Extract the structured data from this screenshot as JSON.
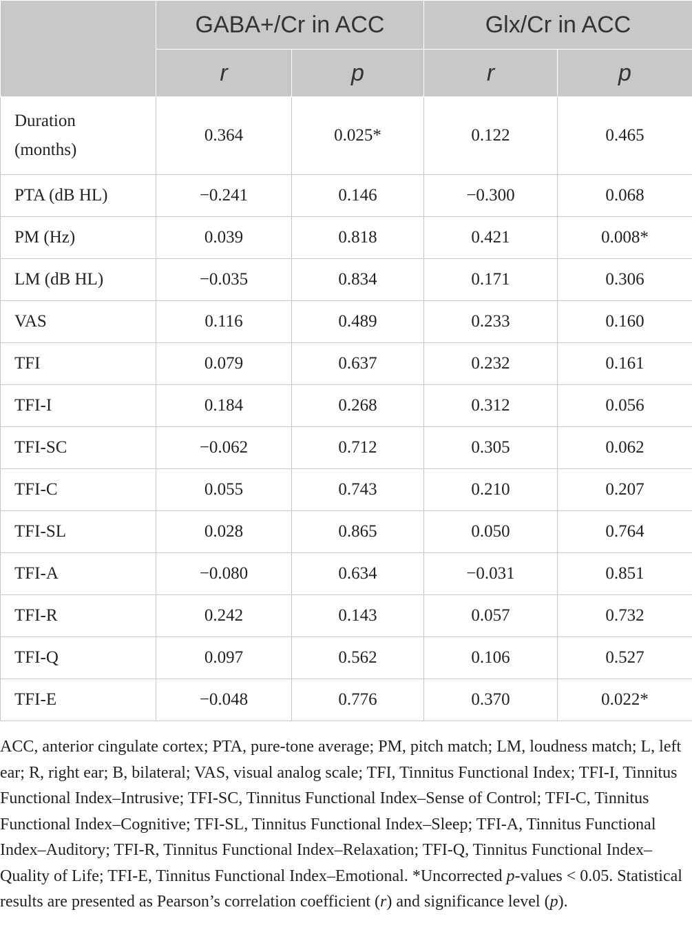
{
  "table": {
    "groups": [
      "GABA+/Cr in ACC",
      "Glx/Cr in ACC"
    ],
    "subheaders": [
      "r",
      "p",
      "r",
      "p"
    ],
    "rows": [
      {
        "label": "Duration (months)",
        "values": [
          "0.364",
          "0.025*",
          "0.122",
          "0.465"
        ]
      },
      {
        "label": "PTA (dB HL)",
        "values": [
          "−0.241",
          "0.146",
          "−0.300",
          "0.068"
        ]
      },
      {
        "label": "PM (Hz)",
        "values": [
          "0.039",
          "0.818",
          "0.421",
          "0.008*"
        ]
      },
      {
        "label": "LM (dB HL)",
        "values": [
          "−0.035",
          "0.834",
          "0.171",
          "0.306"
        ]
      },
      {
        "label": "VAS",
        "values": [
          "0.116",
          "0.489",
          "0.233",
          "0.160"
        ]
      },
      {
        "label": "TFI",
        "values": [
          "0.079",
          "0.637",
          "0.232",
          "0.161"
        ]
      },
      {
        "label": "TFI-I",
        "values": [
          "0.184",
          "0.268",
          "0.312",
          "0.056"
        ]
      },
      {
        "label": "TFI-SC",
        "values": [
          "−0.062",
          "0.712",
          "0.305",
          "0.062"
        ]
      },
      {
        "label": "TFI-C",
        "values": [
          "0.055",
          "0.743",
          "0.210",
          "0.207"
        ]
      },
      {
        "label": "TFI-SL",
        "values": [
          "0.028",
          "0.865",
          "0.050",
          "0.764"
        ]
      },
      {
        "label": "TFI-A",
        "values": [
          "−0.080",
          "0.634",
          "−0.031",
          "0.851"
        ]
      },
      {
        "label": "TFI-R",
        "values": [
          "0.242",
          "0.143",
          "0.057",
          "0.732"
        ]
      },
      {
        "label": "TFI-Q",
        "values": [
          "0.097",
          "0.562",
          "0.106",
          "0.527"
        ]
      },
      {
        "label": "TFI-E",
        "values": [
          "−0.048",
          "0.776",
          "0.370",
          "0.022*"
        ]
      }
    ]
  },
  "footnote": {
    "part1": "ACC, anterior cingulate cortex; PTA, pure-tone average; PM, pitch match; LM, loudness match; L, left ear; R, right ear; B, bilateral; VAS, visual analog scale; TFI, Tinnitus Functional Index; TFI-I, Tinnitus Functional Index–Intrusive; TFI-SC, Tinnitus Functional Index–Sense of Control; TFI-C, Tinnitus Functional Index–Cognitive; TFI-SL, Tinnitus Functional Index–Sleep; TFI-A, Tinnitus Functional Index–Auditory; TFI-R, Tinnitus Functional Index–Relaxation; TFI-Q, Tinnitus Functional Index–Quality of Life; TFI-E, Tinnitus Functional Index–Emotional. *Uncorrected ",
    "p_italic": "p",
    "part2": "-values < 0.05. Statistical results are presented as Pearson’s correlation coefficient (",
    "r_italic": "r",
    "part3": ") and significance level (",
    "p2_italic": "p",
    "part4": ")."
  }
}
